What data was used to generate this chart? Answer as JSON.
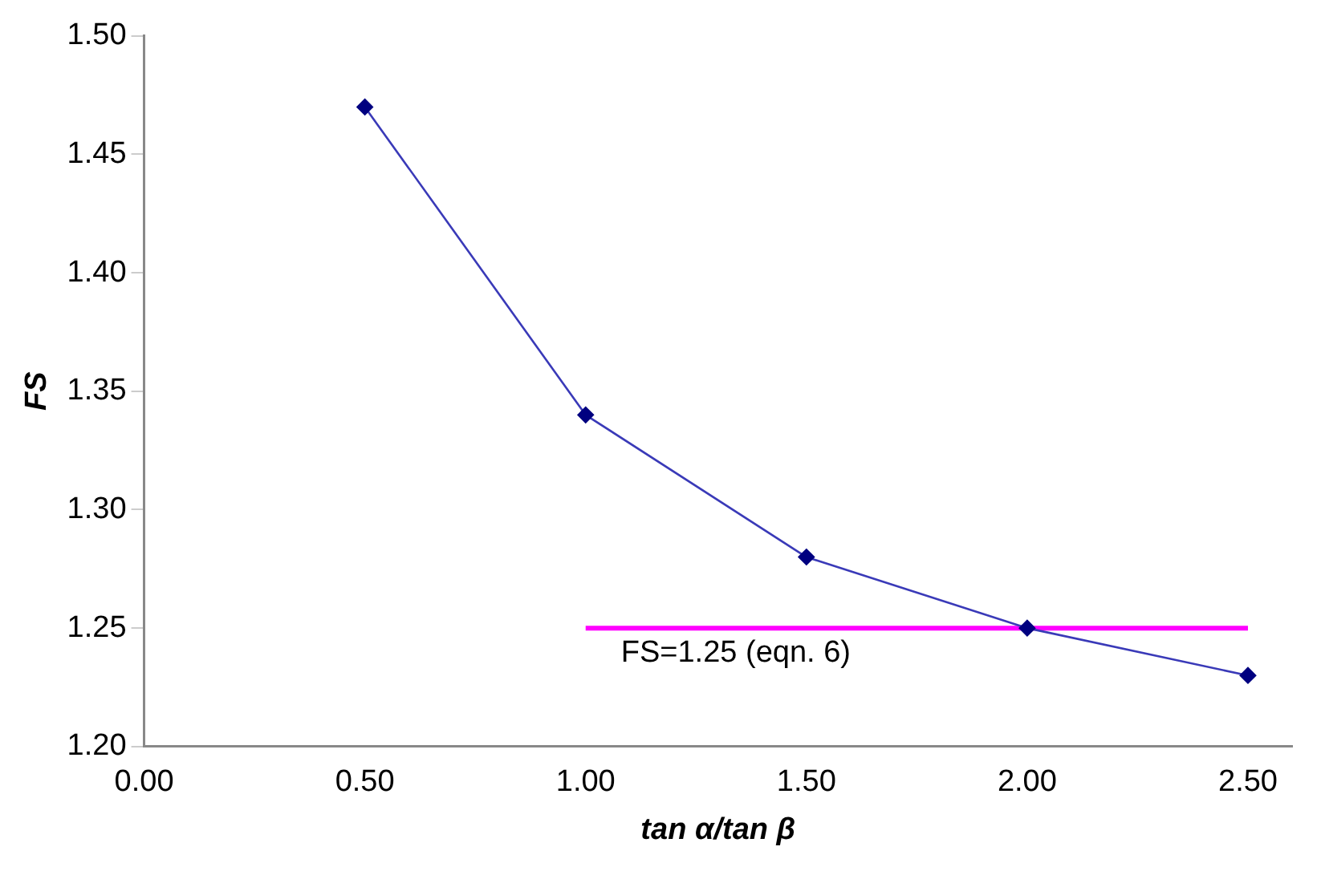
{
  "chart_data": {
    "type": "line",
    "xlabel": "tan α/tan β",
    "ylabel": "FS",
    "marker": "diamond",
    "legend": false,
    "grid": false,
    "xlim": [
      0,
      2.6
    ],
    "xticks": [
      {
        "value": 0,
        "label": "0.00"
      },
      {
        "value": 0.5,
        "label": "0.50"
      },
      {
        "value": 1,
        "label": "1.00"
      },
      {
        "value": 1.5,
        "label": "1.50"
      },
      {
        "value": 2,
        "label": "2.00"
      },
      {
        "value": 2.5,
        "label": "2.50"
      }
    ],
    "ylim": [
      1.2,
      1.5
    ],
    "yticks": [
      {
        "value": 1.2,
        "label": "1.20"
      },
      {
        "value": 1.25,
        "label": "1.25"
      },
      {
        "value": 1.3,
        "label": "1.30"
      },
      {
        "value": 1.35,
        "label": "1.35"
      },
      {
        "value": 1.4,
        "label": "1.40"
      },
      {
        "value": 1.45,
        "label": "1.45"
      },
      {
        "value": 1.5,
        "label": "1.50"
      }
    ],
    "series": [
      {
        "color": "#000080",
        "x": [
          0.5,
          1,
          1.5,
          2,
          2.5
        ],
        "values": [
          1.47,
          1.34,
          1.28,
          1.25,
          1.23
        ]
      },
      {
        "type": "line",
        "color": "#ff00ff",
        "marker": "none",
        "x": [
          1,
          2.5
        ],
        "values": [
          1.25,
          1.25
        ]
      }
    ],
    "annotations": [
      {
        "text": "FS=1.25 (eqn. 6)",
        "x": 1,
        "y": 1.25
      }
    ]
  }
}
